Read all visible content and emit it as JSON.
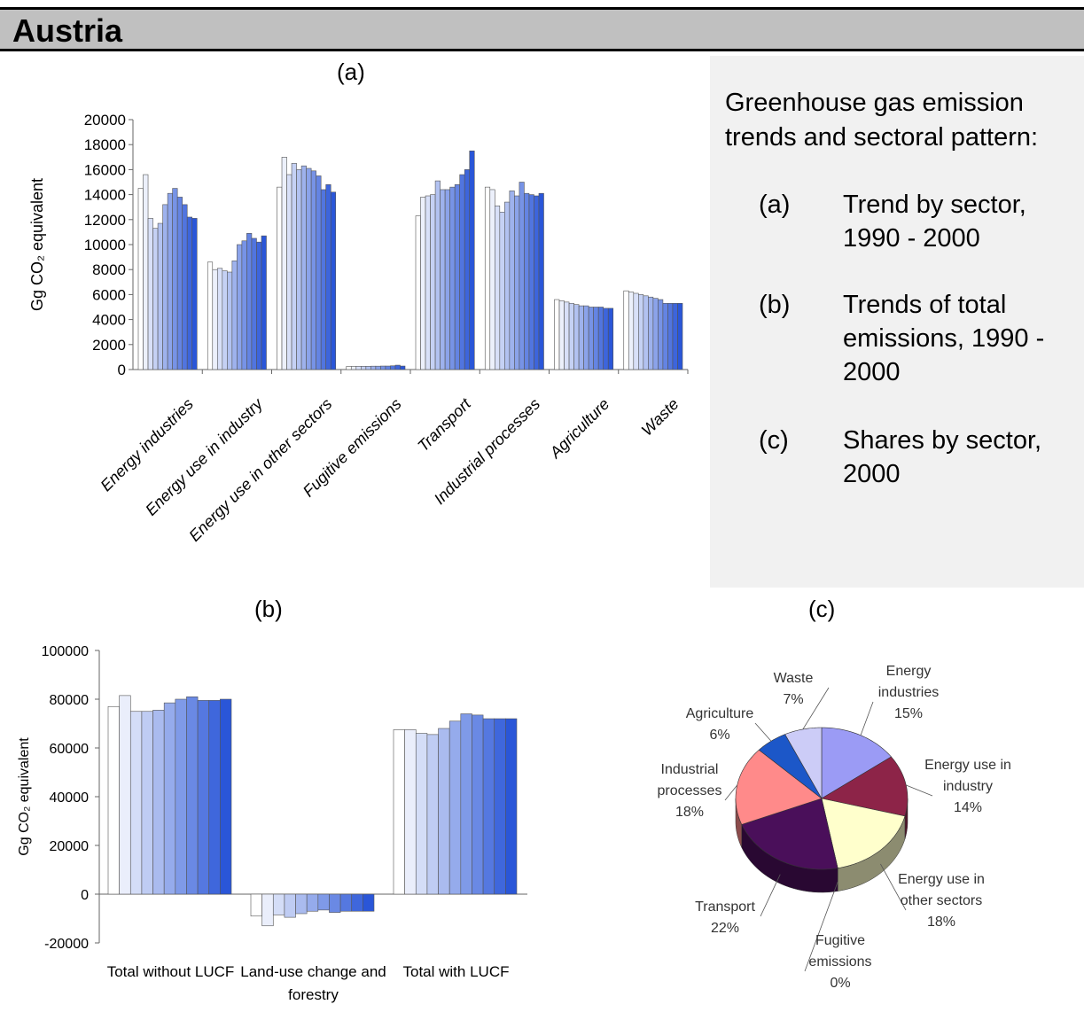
{
  "header": {
    "title": "Austria"
  },
  "panel_labels": {
    "a": "(a)",
    "b": "(b)",
    "c": "(c)"
  },
  "side_panel": {
    "intro": "Greenhouse gas emission trends and sectoral pattern:",
    "items": [
      {
        "key": "(a)",
        "text": "Trend by sector, 1990 - 2000"
      },
      {
        "key": "(b)",
        "text": "Trends of total emissions, 1990 - 2000"
      },
      {
        "key": "(c)",
        "text": "Shares by sector, 2000"
      }
    ]
  },
  "colors": {
    "bar_start": "#ffffff",
    "bar_end": "#2a56d8",
    "header_bg": "#c0c0c0",
    "panel_bg": "#f1f1f1"
  },
  "chart_data": [
    {
      "type": "bar",
      "ylabel": "Gg CO₂ equivalent",
      "ylim": [
        0,
        20000
      ],
      "yticks": [
        0,
        2000,
        4000,
        6000,
        8000,
        10000,
        12000,
        14000,
        16000,
        18000,
        20000
      ],
      "categories": [
        "Energy industries",
        "Energy use in industry",
        "Energy use in other sectors",
        "Fugitive emissions",
        "Transport",
        "Industrial processes",
        "Agriculture",
        "Waste"
      ],
      "values": [
        [
          14500,
          15600,
          12100,
          11300,
          11700,
          13200,
          14100,
          14500,
          13800,
          13200,
          12200,
          12100
        ],
        [
          8600,
          8000,
          8100,
          7900,
          7800,
          8700,
          10000,
          10300,
          10900,
          10500,
          10200,
          10700
        ],
        [
          14600,
          17000,
          15600,
          16500,
          16000,
          16300,
          16100,
          15900,
          15500,
          14400,
          14800,
          14200
        ],
        [
          250,
          250,
          260,
          260,
          260,
          270,
          270,
          280,
          280,
          300,
          350,
          280
        ],
        [
          12300,
          13800,
          13900,
          14000,
          15100,
          14400,
          14400,
          14600,
          14800,
          15600,
          16000,
          17500
        ],
        [
          14600,
          14400,
          13100,
          12600,
          13400,
          14300,
          13900,
          15000,
          14100,
          14000,
          13900,
          14100
        ],
        [
          5600,
          5500,
          5400,
          5300,
          5200,
          5100,
          5100,
          5000,
          5000,
          5000,
          4900,
          4900
        ],
        [
          6300,
          6200,
          6100,
          6000,
          5900,
          5800,
          5700,
          5600,
          5300,
          5300,
          5300,
          5300
        ]
      ],
      "grid": false
    },
    {
      "type": "bar",
      "ylabel": "Gg CO₂ equivalent",
      "ylim": [
        -20000,
        100000
      ],
      "yticks": [
        -20000,
        0,
        20000,
        40000,
        60000,
        80000,
        100000
      ],
      "categories": [
        "Total without LUCF",
        "Land-use change and forestry",
        "Total with LUCF"
      ],
      "values": [
        [
          77000,
          81500,
          75000,
          75000,
          75500,
          78500,
          80000,
          81000,
          79500,
          79500,
          80000
        ],
        [
          -9000,
          -13000,
          -8500,
          -9500,
          -8000,
          -7000,
          -6500,
          -7500,
          -7000,
          -7000,
          -7000
        ],
        [
          67500,
          67500,
          66000,
          65500,
          68000,
          71000,
          74000,
          73500,
          72000,
          72000,
          72000
        ]
      ],
      "grid": false
    },
    {
      "type": "pie",
      "slices": [
        {
          "label": "Energy industries",
          "percent": 15,
          "pct_label": "15%",
          "color": "#9b9bf5"
        },
        {
          "label": "Energy use in industry",
          "percent": 14,
          "pct_label": "14%",
          "color": "#8d2448"
        },
        {
          "label": "Energy use in other sectors",
          "percent": 18,
          "pct_label": "18%",
          "color": "#ffffcc"
        },
        {
          "label": "Fugitive emissions",
          "percent": 0,
          "pct_label": "0%",
          "color": "#aaaaaa"
        },
        {
          "label": "Transport",
          "percent": 22,
          "pct_label": "22%",
          "color": "#4a0f5a"
        },
        {
          "label": "Industrial processes",
          "percent": 18,
          "pct_label": "18%",
          "color": "#ff8a8a"
        },
        {
          "label": "Agriculture",
          "percent": 6,
          "pct_label": "6%",
          "color": "#1c57c8"
        },
        {
          "label": "Waste",
          "percent": 7,
          "pct_label": "7%",
          "color": "#ccccf7"
        }
      ]
    }
  ]
}
